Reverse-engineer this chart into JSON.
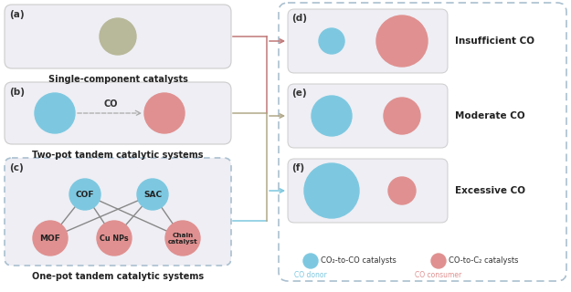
{
  "fig_bg": "#ffffff",
  "blue_color": "#7dc8e0",
  "pink_color": "#e09090",
  "gray_circle": "#b8b89a",
  "arrow_red": "#c07878",
  "arrow_tan": "#b0a888",
  "arrow_blue": "#7dc8e0",
  "dashed_border": "#aac0d0",
  "panel_left_bg": "#eeeef4",
  "panel_right_bg": "#eeeef4",
  "right_box_bg": "#ffffff",
  "panel_a_label": "(a)",
  "panel_b_label": "(b)",
  "panel_c_label": "(c)",
  "panel_d_label": "(d)",
  "panel_e_label": "(e)",
  "panel_f_label": "(f)",
  "title_a": "Single-component catalysts",
  "title_b": "Two-pot tandem catalytic systems",
  "title_c": "One-pot tandem catalytic systems",
  "label_d": "Insufficient CO",
  "label_e": "Moderate CO",
  "label_f": "Excessive CO",
  "legend_blue": "CO₂-to-CO catalysts",
  "legend_pink": "CO-to-C₂ catalysts",
  "legend_blue_sub": "CO donor",
  "legend_pink_sub": "CO consumer",
  "cof_label": "COF",
  "sac_label": "SAC",
  "mof_label": "MOF",
  "cunps_label": "Cu NPs",
  "chain_label": "Chain\ncatalyst",
  "co_label": "CO"
}
